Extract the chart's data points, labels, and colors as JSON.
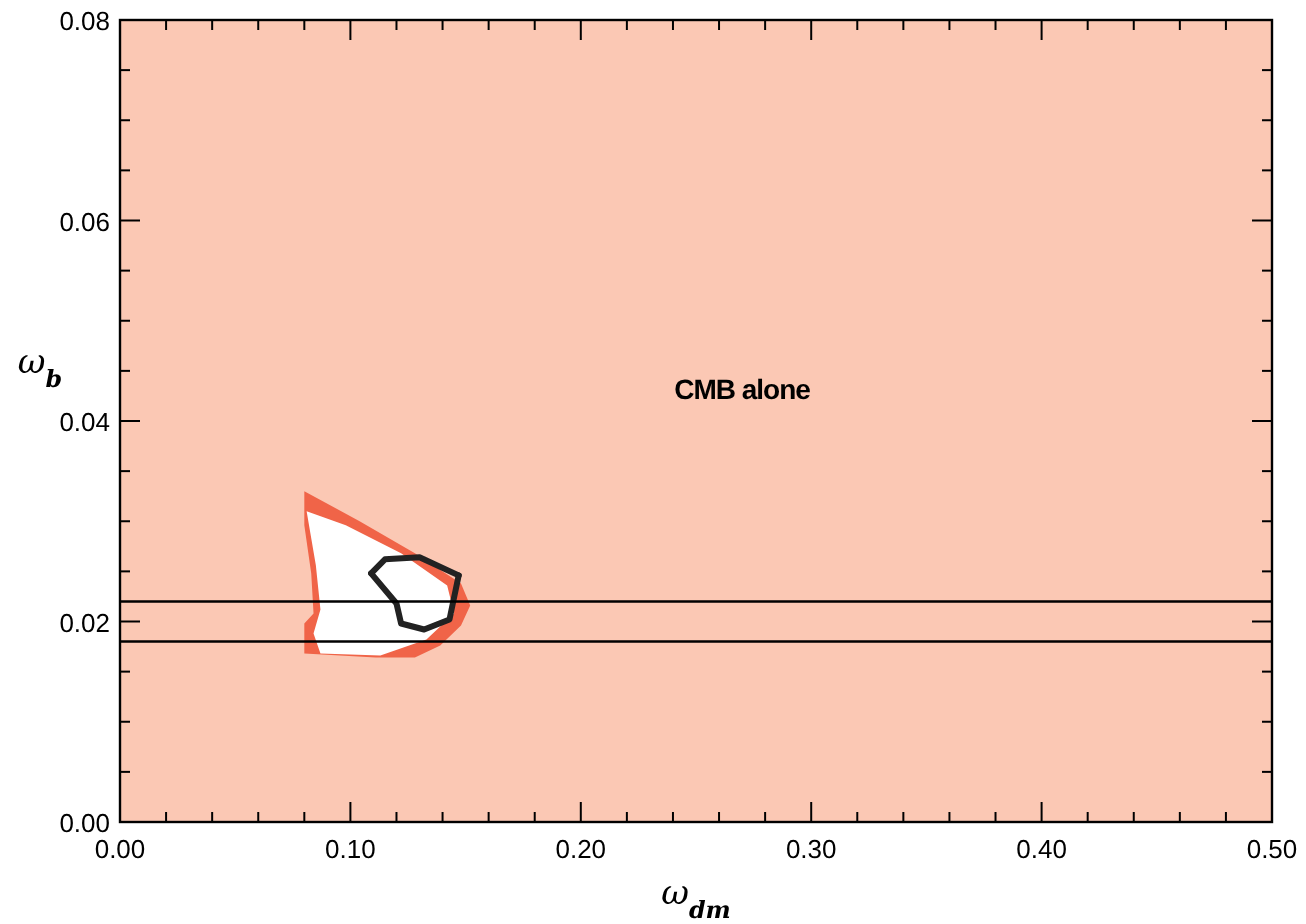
{
  "chart_data": {
    "type": "area",
    "xlabel": "ω$_{dm}$",
    "ylabel": "ω$_{b}$",
    "xlim": [
      0,
      0.5
    ],
    "ylim": [
      0,
      0.08
    ],
    "xticks": [
      {
        "value": 0,
        "label": "0.00"
      },
      {
        "value": 0.1,
        "label": "0.10"
      },
      {
        "value": 0.2,
        "label": "0.20"
      },
      {
        "value": 0.3,
        "label": "0.30"
      },
      {
        "value": 0.4,
        "label": "0.40"
      },
      {
        "value": 0.5,
        "label": "0.50"
      },
      {
        "value": 0.02,
        "label": null
      },
      {
        "value": 0.04,
        "label": null
      },
      {
        "value": 0.06,
        "label": null
      },
      {
        "value": 0.08,
        "label": null
      },
      {
        "value": 0.12,
        "label": null
      },
      {
        "value": 0.14,
        "label": null
      },
      {
        "value": 0.16,
        "label": null
      },
      {
        "value": 0.18,
        "label": null
      },
      {
        "value": 0.22,
        "label": null
      },
      {
        "value": 0.24,
        "label": null
      },
      {
        "value": 0.26,
        "label": null
      },
      {
        "value": 0.28,
        "label": null
      },
      {
        "value": 0.32,
        "label": null
      },
      {
        "value": 0.34,
        "label": null
      },
      {
        "value": 0.36,
        "label": null
      },
      {
        "value": 0.38,
        "label": null
      },
      {
        "value": 0.42,
        "label": null
      },
      {
        "value": 0.44,
        "label": null
      },
      {
        "value": 0.46,
        "label": null
      },
      {
        "value": 0.48,
        "label": null
      }
    ],
    "yticks": [
      {
        "value": 0,
        "label": "0.00"
      },
      {
        "value": 0.02,
        "label": "0.02"
      },
      {
        "value": 0.04,
        "label": "0.04"
      },
      {
        "value": 0.06,
        "label": "0.06"
      },
      {
        "value": 0.08,
        "label": "0.08"
      },
      {
        "value": 0.005,
        "label": null
      },
      {
        "value": 0.01,
        "label": null
      },
      {
        "value": 0.015,
        "label": null
      },
      {
        "value": 0.025,
        "label": null
      },
      {
        "value": 0.03,
        "label": null
      },
      {
        "value": 0.035,
        "label": null
      },
      {
        "value": 0.045,
        "label": null
      },
      {
        "value": 0.05,
        "label": null
      },
      {
        "value": 0.055,
        "label": null
      },
      {
        "value": 0.065,
        "label": null
      },
      {
        "value": 0.07,
        "label": null
      },
      {
        "value": 0.075,
        "label": null
      }
    ],
    "bands": [
      {
        "axis": "x",
        "from": 0,
        "to": 0.5,
        "color": "#fbc8b4"
      }
    ],
    "ref_lines": [
      {
        "axis": "y",
        "value": 0.018,
        "color": "#000000"
      },
      {
        "axis": "y",
        "value": 0.022,
        "color": "#000000"
      }
    ],
    "annotations": [
      "CMB alone"
    ],
    "series": [
      {
        "color": "#f06448",
        "x": [
          0.08,
          0.104,
          0.128,
          0.148,
          0.152,
          0.148,
          0.139,
          0.128,
          0.111,
          0.08,
          0.08,
          0.084,
          0.083,
          0.08
        ],
        "values": [
          0.033,
          0.03,
          0.0268,
          0.0238,
          0.0216,
          0.0196,
          0.0176,
          0.0164,
          0.0164,
          0.0168,
          0.0198,
          0.0208,
          0.0248,
          0.0296
        ]
      },
      {
        "color": "#ffffff",
        "x": [
          0.081,
          0.098,
          0.122,
          0.142,
          0.145,
          0.133,
          0.113,
          0.087,
          0.084,
          0.087,
          0.085
        ],
        "values": [
          0.031,
          0.0296,
          0.0268,
          0.0236,
          0.0208,
          0.0182,
          0.0166,
          0.0168,
          0.0188,
          0.0212,
          0.0256
        ]
      },
      {
        "type": "line",
        "color": "#222222",
        "x": [
          0.109,
          0.115,
          0.13,
          0.147
        ],
        "values": [
          0.0248,
          0.0262,
          0.0264,
          0.0246
        ]
      },
      {
        "type": "line",
        "color": "#222222",
        "x": [
          0.109,
          0.12,
          0.122,
          0.132,
          0.143,
          0.147
        ],
        "values": [
          0.0248,
          0.0218,
          0.0198,
          0.0192,
          0.0202,
          0.0246
        ]
      }
    ]
  }
}
